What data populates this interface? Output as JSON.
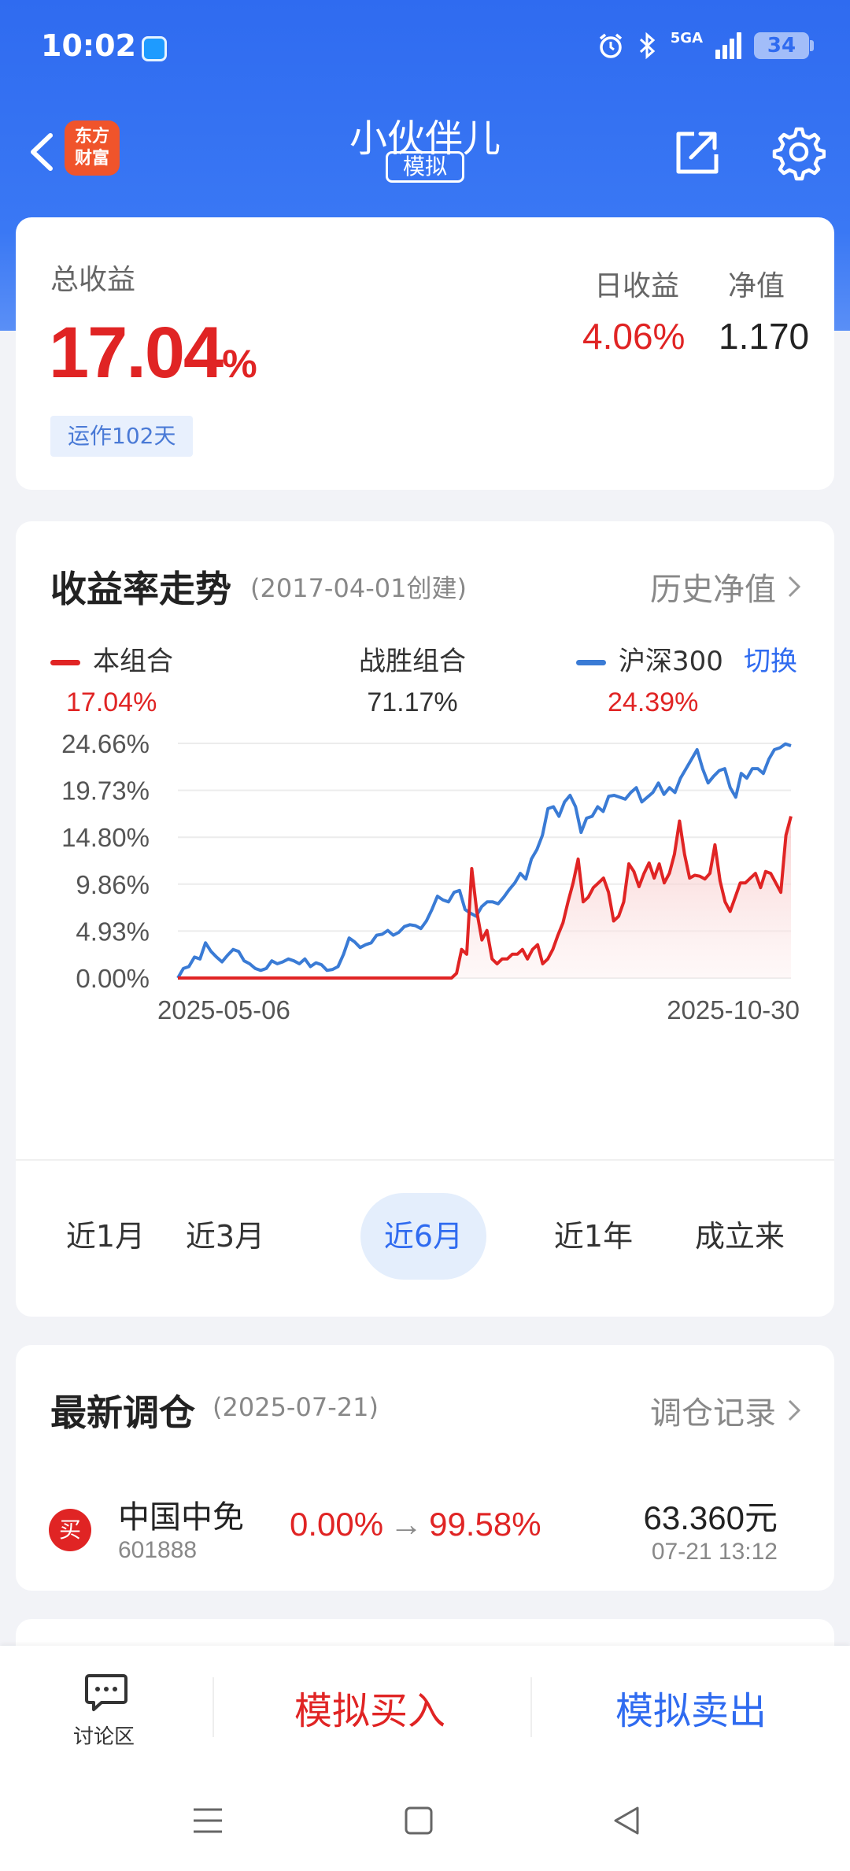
{
  "status_bar": {
    "time": "10:02",
    "network": "5GA",
    "battery": "34"
  },
  "header": {
    "title": "小伙伴儿",
    "mode_badge": "模拟",
    "logo_text": "东方财富"
  },
  "summary": {
    "total_return_label": "总收益",
    "total_return_value": "17.04",
    "total_return_unit": "%",
    "running_days": "运作102天",
    "daily_return_label": "日收益",
    "daily_return_value": "4.06%",
    "nav_label": "净值",
    "nav_value": "1.170"
  },
  "trend": {
    "title": "收益率走势",
    "created": "(2017-04-01创建)",
    "history_link": "历史净值",
    "legend": [
      {
        "name": "本组合",
        "value": "17.04%"
      },
      {
        "name": "战胜组合",
        "value": "71.17%"
      },
      {
        "name": "沪深300",
        "value": "24.39%"
      }
    ],
    "switch_label": "切换",
    "ranges": [
      "近1月",
      "近3月",
      "近6月",
      "近1年",
      "成立来"
    ],
    "active_range": "近6月"
  },
  "chart_data": {
    "type": "line",
    "y_ticks": [
      "24.66%",
      "19.73%",
      "14.80%",
      "9.86%",
      "4.93%",
      "0.00%"
    ],
    "ylim": [
      0,
      24.66
    ],
    "x_tick_labels": [
      "2025-05-06",
      "2025-10-30"
    ],
    "series": [
      {
        "name": "本组合",
        "color": "#e02424",
        "values": [
          0,
          0,
          0,
          0,
          0,
          0,
          0,
          0,
          0,
          0,
          0,
          0,
          0,
          0,
          0,
          0,
          0,
          0,
          0,
          0,
          0,
          0,
          0,
          0,
          0,
          0,
          0,
          0,
          0,
          0,
          0,
          0,
          0,
          0,
          0,
          0,
          0,
          0,
          0,
          0,
          0,
          0,
          0,
          0,
          0,
          0,
          0,
          0,
          0,
          0,
          0,
          0,
          0,
          0,
          0,
          0.5,
          3,
          2.5,
          11.5,
          7,
          4,
          5,
          2,
          1.5,
          2,
          2,
          2.5,
          2.5,
          3,
          2,
          3,
          3.5,
          1.5,
          2,
          3,
          4.5,
          5.8,
          8,
          10,
          12.5,
          8,
          8.5,
          9.5,
          10,
          10.5,
          9,
          6,
          6.5,
          8,
          12,
          11.2,
          9.6,
          11,
          12.1,
          10.5,
          12,
          10,
          11,
          13,
          16.5,
          13,
          10.5,
          10.8,
          10.7,
          10.4,
          11,
          14,
          10.2,
          8,
          7,
          8.5,
          10,
          10,
          10.5,
          11,
          9.5,
          11.2,
          11,
          10,
          9,
          15,
          17
        ]
      },
      {
        "name": "沪深300",
        "color": "#3a7bd5",
        "values": [
          0,
          1,
          1.2,
          2.2,
          2,
          3.7,
          2.8,
          2.2,
          1.7,
          2.4,
          3,
          2.8,
          1.8,
          1.5,
          1,
          0.8,
          1,
          1.8,
          1.5,
          1.7,
          2,
          1.8,
          1.5,
          2,
          1.2,
          1.6,
          1.4,
          0.8,
          0.9,
          1.2,
          2.5,
          4.2,
          3.8,
          3.2,
          3.5,
          3.7,
          4.5,
          4.6,
          5,
          4.5,
          4.8,
          5.4,
          5.6,
          5.5,
          5.2,
          6,
          7.2,
          8.6,
          8.2,
          8,
          9,
          9.2,
          7.2,
          6.8,
          6.5,
          7.5,
          8,
          8,
          7.8,
          8.5,
          9.3,
          10,
          11,
          10.4,
          12.5,
          13.5,
          15,
          17.8,
          18,
          17,
          18.5,
          19.2,
          18,
          15.3,
          16.8,
          17,
          18,
          17.5,
          19.1,
          19.2,
          19,
          18.8,
          19.5,
          20,
          18.5,
          19,
          19.5,
          20.5,
          19.3,
          20,
          19.5,
          21,
          22,
          23,
          24,
          22,
          20.5,
          21.2,
          21.8,
          22,
          20,
          19,
          21.5,
          21,
          22,
          22,
          21.5,
          23,
          24,
          24.2,
          24.6,
          24.4
        ]
      }
    ]
  },
  "rebalance": {
    "title": "最新调仓",
    "date": "(2025-07-21)",
    "records_link": "调仓记录",
    "item": {
      "badge": "买",
      "name": "中国中免",
      "code": "601888",
      "from": "0.00%",
      "to": "99.58%",
      "price": "63.360元",
      "time": "07-21  13:12"
    }
  },
  "bottom": {
    "discuss": "讨论区",
    "buy": "模拟买入",
    "sell": "模拟卖出"
  }
}
